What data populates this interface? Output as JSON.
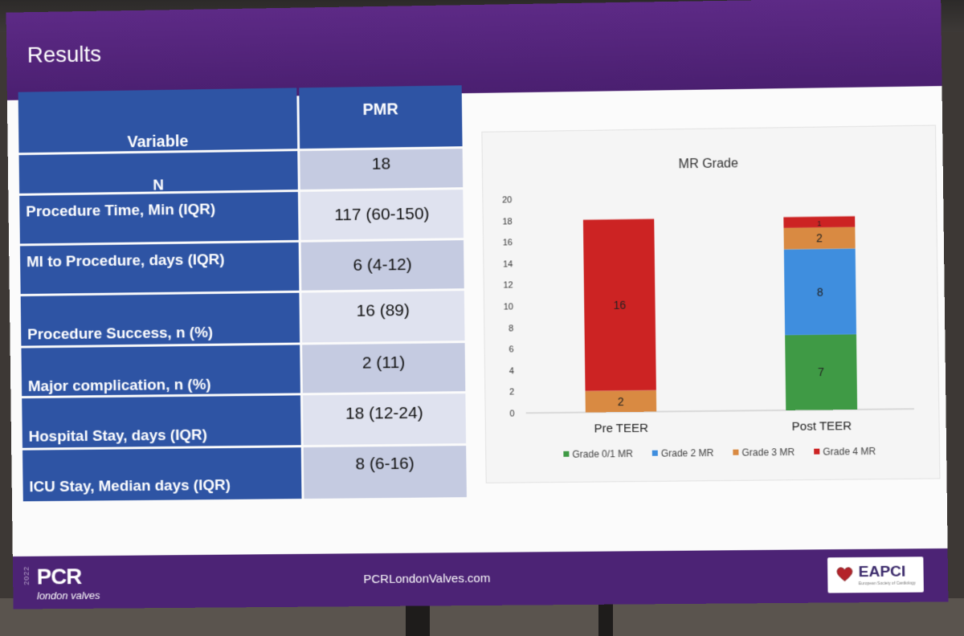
{
  "slide": {
    "title": "Results",
    "footer": {
      "year": "2022",
      "logo": "PCR",
      "logo_sub": "london valves",
      "website": "PCRLondonValves.com",
      "partner_logo": "EAPCI",
      "partner_logo_sub": "European Society of Cardiology",
      "heart_color": "#b4232a"
    }
  },
  "table": {
    "headers": {
      "variable": "Variable",
      "value": "PMR"
    },
    "rows": [
      {
        "label": "N",
        "value": "18"
      },
      {
        "label": "Procedure Time, Min (IQR)",
        "value": "117 (60-150)"
      },
      {
        "label": "MI to Procedure, days (IQR)",
        "value": "6 (4-12)"
      },
      {
        "label": "Procedure Success, n (%)",
        "value": "16 (89)"
      },
      {
        "label": "Major complication, n (%)",
        "value": "2 (11)"
      },
      {
        "label": "Hospital Stay, days (IQR)",
        "value": "18 (12-24)"
      },
      {
        "label": "ICU Stay, Median days (IQR)",
        "value": "8 (6-16)"
      }
    ]
  },
  "chart_data": {
    "type": "bar",
    "stacked": true,
    "title": "MR Grade",
    "categories": [
      "Pre TEER",
      "Post TEER"
    ],
    "series": [
      {
        "name": "Grade 0/1 MR",
        "color": "#3f9a45",
        "values": [
          0,
          7
        ]
      },
      {
        "name": "Grade 2 MR",
        "color": "#3f8ede",
        "values": [
          0,
          8
        ]
      },
      {
        "name": "Grade 3 MR",
        "color": "#d98a42",
        "values": [
          2,
          2
        ]
      },
      {
        "name": "Grade 4 MR",
        "color": "#cc2323",
        "values": [
          16,
          1
        ]
      }
    ],
    "ylim": [
      0,
      20
    ],
    "yticks": [
      0,
      2,
      4,
      6,
      8,
      10,
      12,
      14,
      16,
      18,
      20
    ],
    "grid": false,
    "legend_position": "bottom"
  }
}
